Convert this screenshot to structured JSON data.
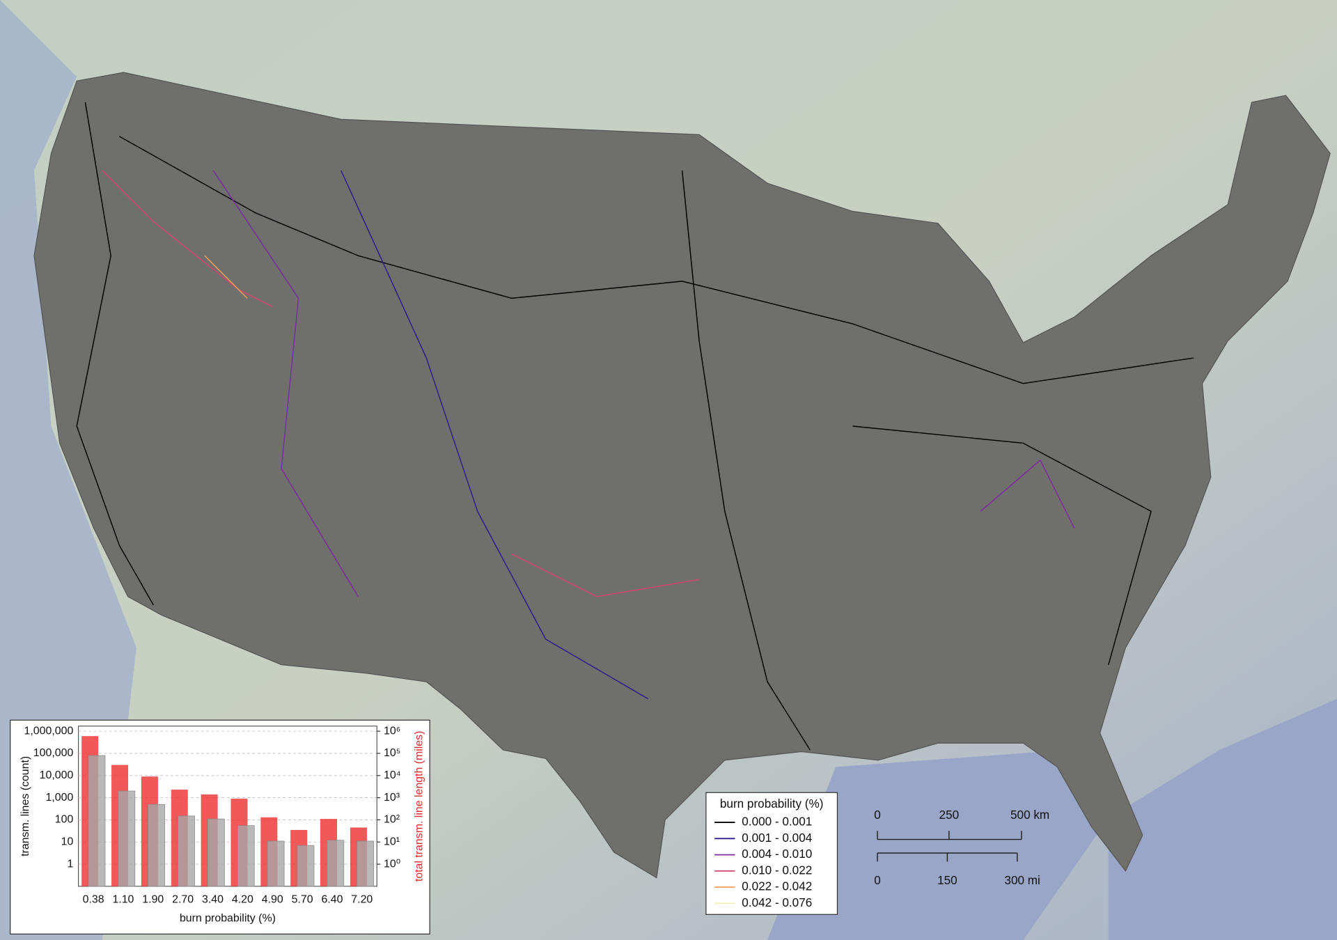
{
  "chart_data": {
    "type": "bar",
    "log": true,
    "grid": true,
    "xlabel": "burn probability (%)",
    "ylabel": "transm. lines (count)",
    "y2label": "total transm. line length (miles)",
    "categories": [
      "0.38",
      "1.10",
      "1.90",
      "2.70",
      "3.40",
      "4.20",
      "4.90",
      "5.70",
      "6.40",
      "7.20"
    ],
    "series": [
      {
        "name": "total transm. line length (miles)",
        "color": "#ee3b3b",
        "axis": "y2",
        "values": [
          600000,
          30000,
          9000,
          2300,
          1400,
          900,
          130,
          35,
          110,
          45
        ]
      },
      {
        "name": "transm. lines (count)",
        "color": "#a8a8a8",
        "values": [
          80000,
          2000,
          500,
          150,
          110,
          55,
          11,
          7,
          12,
          11
        ]
      }
    ],
    "ylim": [
      0.1,
      1700000
    ],
    "yticks": [
      1,
      10,
      100,
      {
        "value": 1000,
        "label": "1,000"
      },
      {
        "value": 10000,
        "label": "10,000"
      },
      {
        "value": 100000,
        "label": "100,000"
      },
      {
        "value": 1000000,
        "label": "1,000,000"
      }
    ],
    "y2lim": [
      0.1,
      1700000
    ],
    "y2ticks": [
      {
        "value": 1,
        "label": "10⁰"
      },
      {
        "value": 10,
        "label": "10¹"
      },
      {
        "value": 100,
        "label": "10²"
      },
      {
        "value": 1000,
        "label": "10³"
      },
      {
        "value": 10000,
        "label": "10⁴"
      },
      {
        "value": 100000,
        "label": "10⁵"
      },
      {
        "value": 1000000,
        "label": "10⁶"
      }
    ]
  },
  "legend": {
    "title": "burn probability (%)",
    "entries": [
      {
        "label": "0.000 - 0.001",
        "color": "#000000"
      },
      {
        "label": "0.001 - 0.004",
        "color": "#2e1a8e"
      },
      {
        "label": "0.004 - 0.010",
        "color": "#7d2aa0"
      },
      {
        "label": "0.010 - 0.022",
        "color": "#d6456b"
      },
      {
        "label": "0.022 - 0.042",
        "color": "#f59f5a"
      },
      {
        "label": "0.042 - 0.076",
        "color": "#f8eeb4"
      }
    ]
  },
  "scale_bar": {
    "km": [
      "0",
      "250",
      "500 km"
    ],
    "mi": [
      "0",
      "150",
      "300 mi"
    ]
  }
}
